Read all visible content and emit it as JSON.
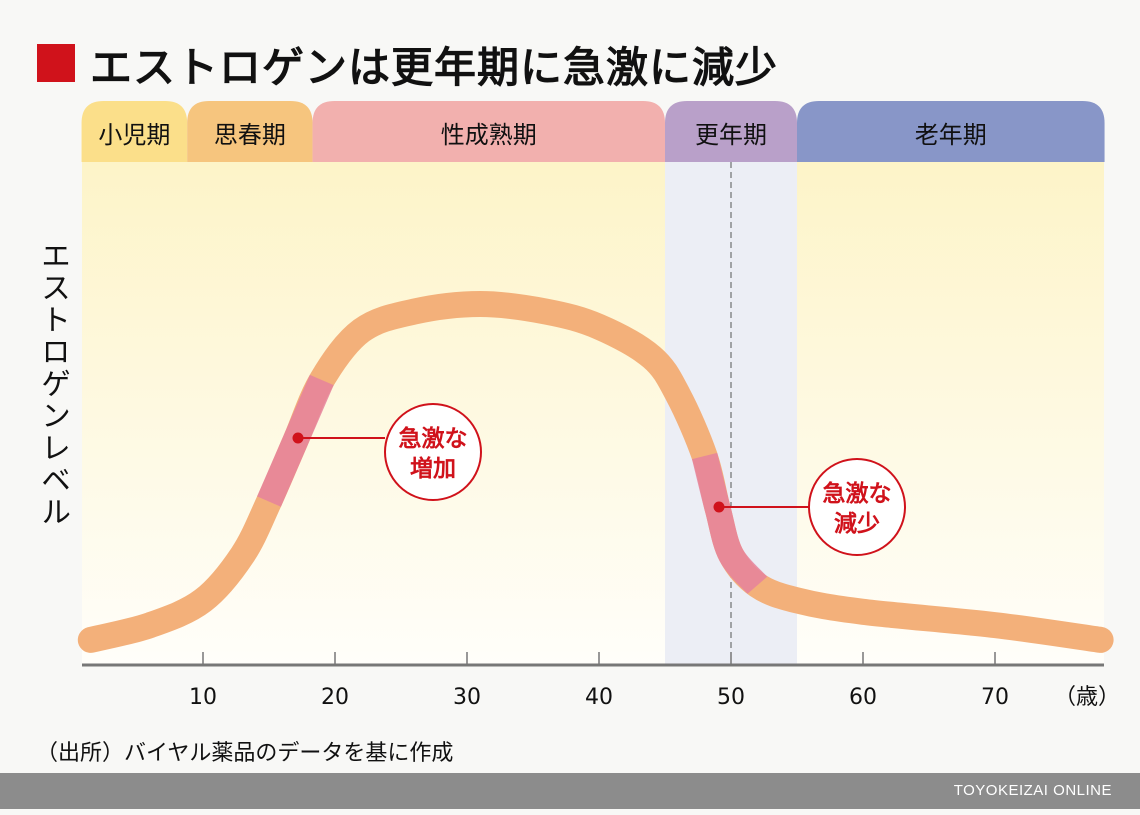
{
  "title": "エストロゲンは更年期に急激に減少",
  "source": "（出所）バイヤル薬品のデータを基に作成",
  "footer": "TOYOKEIZAI ONLINE",
  "colors": {
    "accent": "#d0121b",
    "curve": "#f3b07a",
    "curve_steep": "#e5829c"
  },
  "chart_data": {
    "type": "line",
    "title": "エストロゲンは更年期に急激に減少",
    "xlabel": "（歳）",
    "ylabel": "エストロゲンレベル",
    "xlim": [
      0,
      78
    ],
    "ylim": [
      0,
      100
    ],
    "xticks": [
      10,
      20,
      30,
      40,
      50,
      60,
      70
    ],
    "xtick_labels": [
      "10",
      "20",
      "30",
      "40",
      "50",
      "60",
      "70"
    ],
    "phases": [
      {
        "label": "小児期",
        "from": 0.8,
        "to": 8.8,
        "color": "#fbdf8a"
      },
      {
        "label": "思春期",
        "from": 8.8,
        "to": 18.3,
        "color": "#f6c57e"
      },
      {
        "label": "性成熟期",
        "from": 18.3,
        "to": 45,
        "color": "#f2b0ae"
      },
      {
        "label": "更年期",
        "from": 45,
        "to": 55,
        "color": "#b9a0c9"
      },
      {
        "label": "老年期",
        "from": 55,
        "to": 78.3,
        "color": "#8896c8"
      }
    ],
    "menopause_marker": 50,
    "series": [
      {
        "name": "エストロゲンレベル",
        "x": [
          1.5,
          6,
          10,
          13,
          15,
          17,
          19,
          22,
          26,
          31,
          36,
          40,
          44,
          46,
          48,
          49,
          50,
          52,
          55,
          60,
          70,
          78
        ],
        "y": [
          6.6,
          10.5,
          17,
          29,
          43,
          59,
          75,
          88,
          93,
          95,
          93,
          89,
          81,
          71,
          55,
          41,
          29,
          21,
          17,
          14,
          10.5,
          6.6
        ]
      }
    ],
    "annotations": [
      {
        "label_line1": "急激な",
        "label_line2": "増加",
        "x": 17.1
      },
      {
        "label_line1": "急激な",
        "label_line2": "減少",
        "x": 49.1
      }
    ]
  }
}
